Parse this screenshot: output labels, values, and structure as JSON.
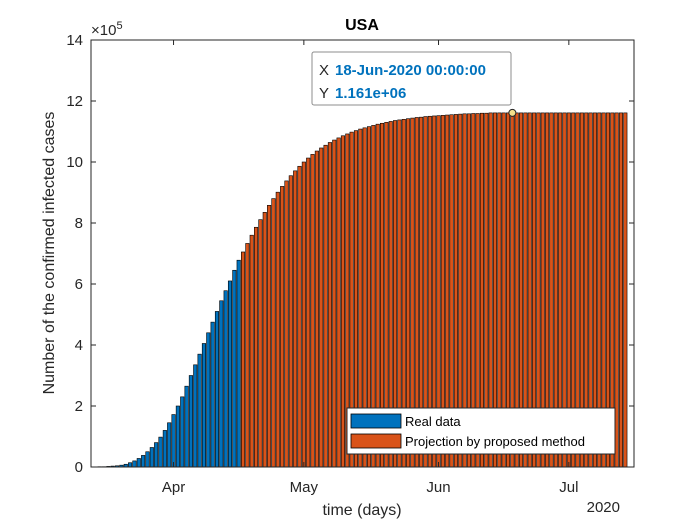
{
  "chart_data": {
    "type": "bar",
    "title": "USA",
    "xlabel": "time (days)",
    "ylabel": "Number of the confirmed infected cases",
    "y_exponent_label": "×10",
    "y_exponent_power": "5",
    "year_label": "2020",
    "ylim": [
      0,
      14
    ],
    "yticks": [
      "0",
      "2",
      "4",
      "6",
      "8",
      "10",
      "12",
      "14"
    ],
    "xlim": [
      "2020-03-13",
      "2020-07-16"
    ],
    "xticks": [
      {
        "date": "2020-04-01",
        "label": "Apr"
      },
      {
        "date": "2020-05-01",
        "label": "May"
      },
      {
        "date": "2020-06-01",
        "label": "Jun"
      },
      {
        "date": "2020-07-01",
        "label": "Jul"
      }
    ],
    "grid": false,
    "legend_position": "bottom-right",
    "series": [
      {
        "name": "Real data",
        "color": "#0072bd",
        "start_date": "2020-03-15",
        "values": [
          0.01,
          0.01,
          0.02,
          0.03,
          0.04,
          0.06,
          0.09,
          0.14,
          0.2,
          0.28,
          0.38,
          0.5,
          0.64,
          0.8,
          0.98,
          1.2,
          1.45,
          1.72,
          2.0,
          2.3,
          2.65,
          3.0,
          3.35,
          3.7,
          4.05,
          4.4,
          4.75,
          5.1,
          5.45,
          5.78,
          6.1,
          6.45,
          6.78
        ]
      },
      {
        "name": "Projection by proposed method",
        "color": "#d95319",
        "start_date": "2020-04-17",
        "values": [
          7.05,
          7.33,
          7.6,
          7.86,
          8.11,
          8.35,
          8.58,
          8.8,
          9.01,
          9.2,
          9.38,
          9.55,
          9.71,
          9.86,
          10.0,
          10.13,
          10.25,
          10.36,
          10.46,
          10.55,
          10.64,
          10.72,
          10.79,
          10.86,
          10.92,
          10.98,
          11.03,
          11.08,
          11.12,
          11.16,
          11.2,
          11.24,
          11.27,
          11.3,
          11.33,
          11.36,
          11.38,
          11.4,
          11.42,
          11.44,
          11.46,
          11.47,
          11.49,
          11.5,
          11.51,
          11.52,
          11.53,
          11.54,
          11.55,
          11.56,
          11.57,
          11.58,
          11.58,
          11.59,
          11.59,
          11.6,
          11.6,
          11.61,
          11.61,
          11.61,
          11.61,
          11.61,
          11.61,
          11.61,
          11.61,
          11.61,
          11.61,
          11.61,
          11.61,
          11.61,
          11.61,
          11.61,
          11.61,
          11.61,
          11.61,
          11.61,
          11.61,
          11.61,
          11.61,
          11.61,
          11.61,
          11.61,
          11.61,
          11.61,
          11.61,
          11.61,
          11.61,
          11.61,
          11.61
        ]
      }
    ],
    "datatip": {
      "x_key": "X",
      "x_value": "18-Jun-2020 00:00:00",
      "y_key": "Y",
      "y_value": "1.161e+06",
      "date": "2020-06-18",
      "value": 11.61
    }
  }
}
